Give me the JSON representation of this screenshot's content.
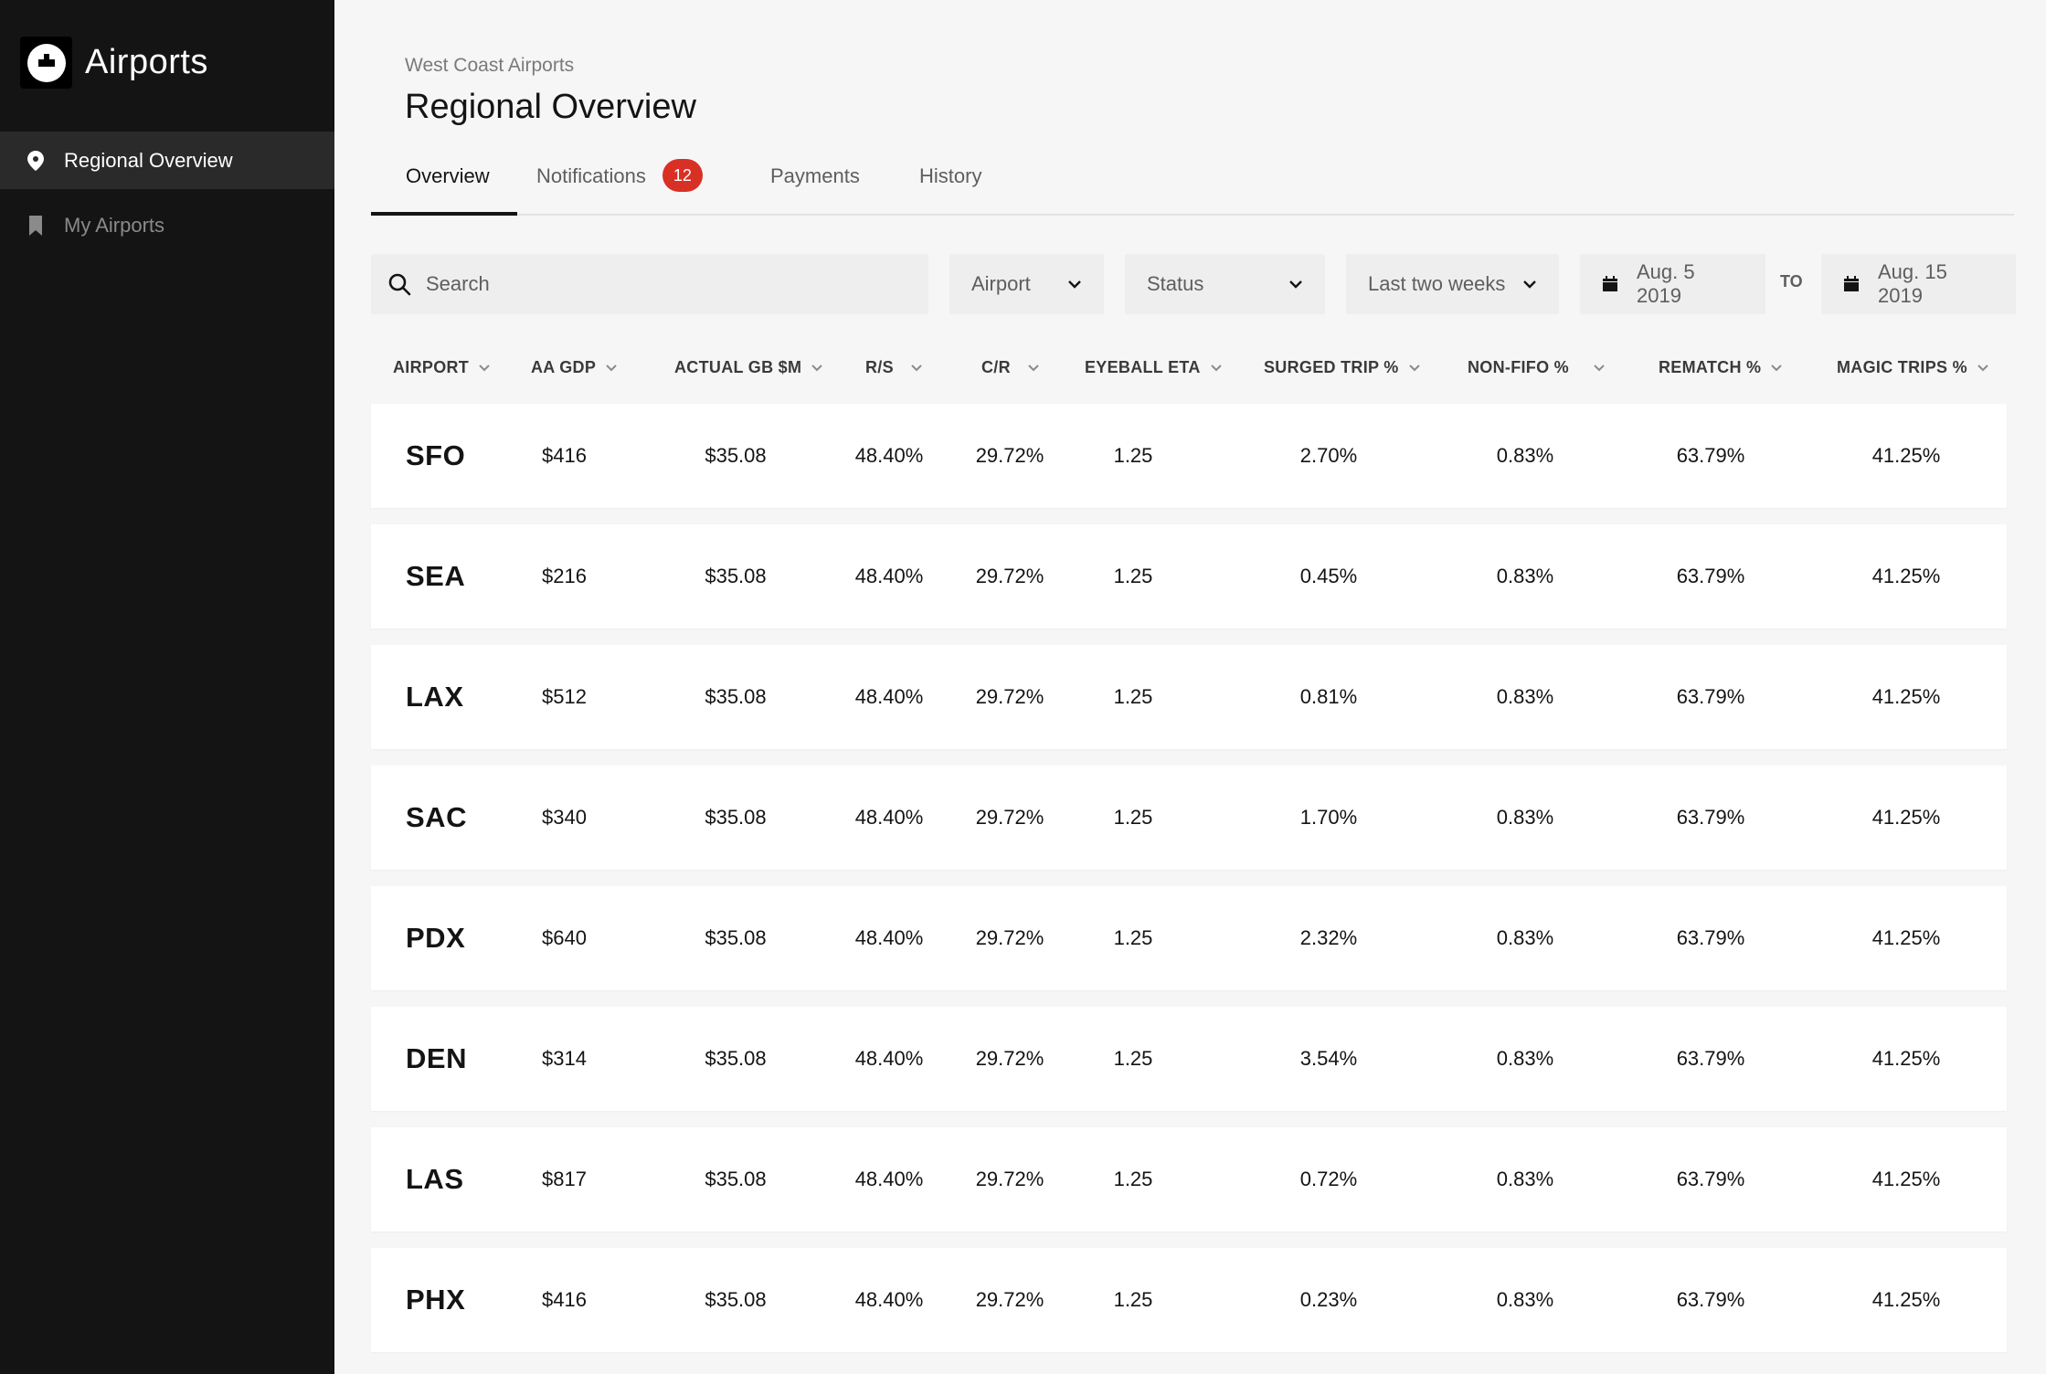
{
  "sidebar": {
    "app_title": "Airports",
    "logo_icon": "uber-logo-icon",
    "items": [
      {
        "label": "Regional Overview",
        "icon": "location-pin-icon",
        "active": true
      },
      {
        "label": "My Airports",
        "icon": "bookmark-icon",
        "active": false
      }
    ]
  },
  "header": {
    "breadcrumb": "West Coast Airports",
    "title": "Regional Overview"
  },
  "tabs": [
    {
      "label": "Overview",
      "active": true
    },
    {
      "label": "Notifications",
      "badge": "12"
    },
    {
      "label": "Payments"
    },
    {
      "label": "History"
    }
  ],
  "filters": {
    "search_placeholder": "Search",
    "airport": "Airport",
    "status": "Status",
    "range": "Last two weeks",
    "start_date": "Aug. 5 2019",
    "to_label": "TO",
    "end_date": "Aug. 15 2019"
  },
  "colors": {
    "sidebar_bg": "#141414",
    "active_nav_bg": "#2a2a2a",
    "badge": "#d93025",
    "page_bg": "#f6f6f6"
  },
  "table": {
    "columns": [
      "AIRPORT",
      "AA GDP",
      "ACTUAL GB $M",
      "R/S",
      "C/R",
      "EYEBALL ETA",
      "SURGED TRIP %",
      "NON-FIFO %",
      "REMATCH %",
      "MAGIC TRIPS %"
    ],
    "rows": [
      [
        "SFO",
        "$416",
        "$35.08",
        "48.40%",
        "29.72%",
        "1.25",
        "2.70%",
        "0.83%",
        "63.79%",
        "41.25%"
      ],
      [
        "SEA",
        "$216",
        "$35.08",
        "48.40%",
        "29.72%",
        "1.25",
        "0.45%",
        "0.83%",
        "63.79%",
        "41.25%"
      ],
      [
        "LAX",
        "$512",
        "$35.08",
        "48.40%",
        "29.72%",
        "1.25",
        "0.81%",
        "0.83%",
        "63.79%",
        "41.25%"
      ],
      [
        "SAC",
        "$340",
        "$35.08",
        "48.40%",
        "29.72%",
        "1.25",
        "1.70%",
        "0.83%",
        "63.79%",
        "41.25%"
      ],
      [
        "PDX",
        "$640",
        "$35.08",
        "48.40%",
        "29.72%",
        "1.25",
        "2.32%",
        "0.83%",
        "63.79%",
        "41.25%"
      ],
      [
        "DEN",
        "$314",
        "$35.08",
        "48.40%",
        "29.72%",
        "1.25",
        "3.54%",
        "0.83%",
        "63.79%",
        "41.25%"
      ],
      [
        "LAS",
        "$817",
        "$35.08",
        "48.40%",
        "29.72%",
        "1.25",
        "0.72%",
        "0.83%",
        "63.79%",
        "41.25%"
      ],
      [
        "PHX",
        "$416",
        "$35.08",
        "48.40%",
        "29.72%",
        "1.25",
        "0.23%",
        "0.83%",
        "63.79%",
        "41.25%"
      ]
    ]
  }
}
